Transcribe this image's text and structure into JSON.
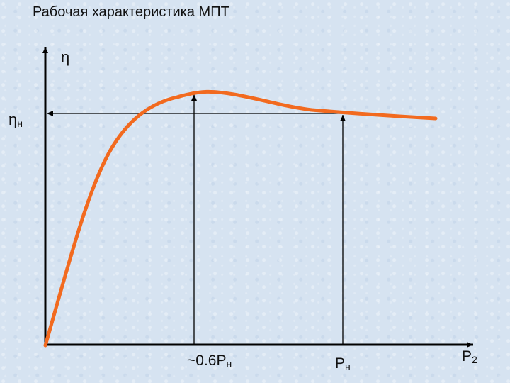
{
  "title": "Рабочая характеристика МПТ",
  "labels": {
    "y_axis": "η",
    "eta_n_main": "η",
    "eta_n_sub": "н",
    "p06_main": "~0.6Р",
    "p06_sub": "н",
    "pn_main": "Р",
    "pn_sub": "н",
    "p2_main": "Р",
    "p2_sub": "2"
  },
  "colors": {
    "curve": "#f26a1f",
    "lines": "#000000",
    "background": "#d6e3f1"
  }
}
